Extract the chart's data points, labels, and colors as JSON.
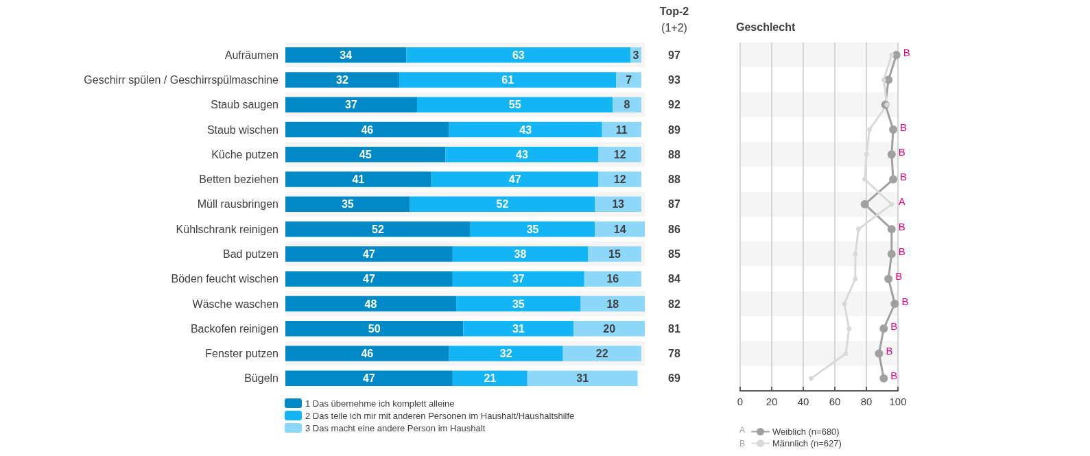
{
  "chart_data": [
    {
      "type": "bar",
      "orientation": "horizontal",
      "stacked": true,
      "data_labels": true,
      "tick_labels": "y",
      "grid": false,
      "legend": "bottom",
      "xlim": [
        0,
        101
      ],
      "categories": [
        "Aufräumen",
        "Geschirr spülen / Geschirrspülmaschine",
        "Staub saugen",
        "Staub wischen",
        "Küche putzen",
        "Betten beziehen",
        "Müll rausbringen",
        "Kühlschrank reinigen",
        "Bad putzen",
        "Böden feucht wischen",
        "Wäsche waschen",
        "Backofen reinigen",
        "Fenster putzen",
        "Bügeln"
      ],
      "series": [
        {
          "name": "1 Das übernehme ich komplett alleine",
          "color": "#0089c7",
          "values": [
            34,
            32,
            37,
            46,
            45,
            41,
            35,
            52,
            47,
            47,
            48,
            50,
            46,
            47
          ]
        },
        {
          "name": "2 Das teile ich mir mit anderen Personen im Haushalt/Haushaltshilfe",
          "color": "#13b5f5",
          "values": [
            63,
            61,
            55,
            43,
            43,
            47,
            52,
            35,
            38,
            37,
            35,
            31,
            32,
            21
          ]
        },
        {
          "name": "3 Das macht eine andere Person im Haushalt",
          "color": "#8dd8f8",
          "values": [
            3,
            7,
            8,
            11,
            12,
            12,
            13,
            14,
            15,
            16,
            18,
            20,
            22,
            31
          ]
        }
      ],
      "annotations": [
        "Top-2",
        "(1+2)",
        "97",
        "93",
        "92",
        "89",
        "88",
        "88",
        "87",
        "86",
        "85",
        "84",
        "82",
        "81",
        "78",
        "69"
      ]
    },
    {
      "type": "line",
      "orientation": "horizontal",
      "title": "Geschlecht",
      "tick_labels": "x",
      "grid": "x",
      "legend": "bottom",
      "marker": "circle",
      "line_style": "solid",
      "xlim": [
        0,
        100
      ],
      "xticks": [
        0,
        20,
        40,
        60,
        80,
        100
      ],
      "categories": [
        "Aufräumen",
        "Geschirr spülen / Geschirrspülmaschine",
        "Staub saugen",
        "Staub wischen",
        "Küche putzen",
        "Betten beziehen",
        "Müll rausbringen",
        "Kühlschrank reinigen",
        "Bad putzen",
        "Böden feucht wischen",
        "Wäsche waschen",
        "Backofen reinigen",
        "Fenster putzen",
        "Bügeln"
      ],
      "series": [
        {
          "name": "Weiblich (n=680)",
          "color": "#a0a0a0",
          "values": [
            99,
            94,
            92,
            97,
            96,
            97,
            79,
            96,
            96,
            94,
            98,
            91,
            88,
            91
          ]
        },
        {
          "name": "Männlich (n=627)",
          "color": "#d9d9d9",
          "values": [
            96,
            91,
            93,
            82,
            80,
            79,
            96,
            75,
            73,
            73,
            66,
            69,
            67,
            45
          ]
        }
      ],
      "annotations": [
        "A",
        "B",
        {
          "text": "B",
          "x": 99,
          "y": "Aufräumen"
        },
        {
          "text": "B",
          "x": 97,
          "y": "Staub wischen"
        },
        {
          "text": "B",
          "x": 96,
          "y": "Küche putzen"
        },
        {
          "text": "B",
          "x": 97,
          "y": "Betten beziehen"
        },
        {
          "text": "A",
          "x": 96,
          "y": "Müll rausbringen"
        },
        {
          "text": "B",
          "x": 96,
          "y": "Kühlschrank reinigen"
        },
        {
          "text": "B",
          "x": 96,
          "y": "Bad putzen"
        },
        {
          "text": "B",
          "x": 94,
          "y": "Böden feucht wischen"
        },
        {
          "text": "B",
          "x": 98,
          "y": "Wäsche waschen"
        },
        {
          "text": "B",
          "x": 91,
          "y": "Backofen reinigen"
        },
        {
          "text": "B",
          "x": 88,
          "y": "Fenster putzen"
        },
        {
          "text": "B",
          "x": 91,
          "y": "Bügeln"
        }
      ]
    }
  ]
}
